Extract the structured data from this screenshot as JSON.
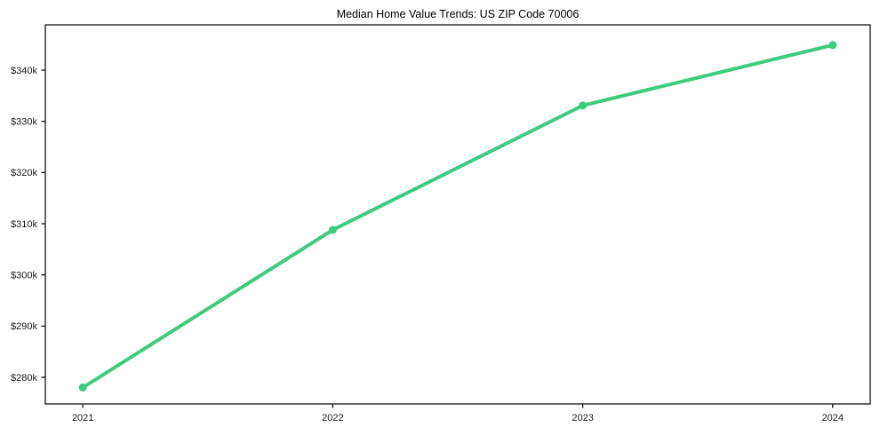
{
  "figure": {
    "title": "Median Home Value Trends: US ZIP Code 70006"
  },
  "chart_data": {
    "type": "line",
    "title": "Median Home Value Trends: US ZIP Code 70006",
    "xlabel": "",
    "ylabel": "",
    "x": [
      2021,
      2022,
      2023,
      2024
    ],
    "values": [
      278000,
      308800,
      333100,
      344900
    ],
    "xtick_labels": [
      "2021",
      "2022",
      "2023",
      "2024"
    ],
    "ytick_values": [
      280000,
      290000,
      300000,
      310000,
      320000,
      330000,
      340000
    ],
    "ytick_labels": [
      "$280k",
      "$290k",
      "$300k",
      "$310k",
      "$320k",
      "$330k",
      "$340k"
    ],
    "xlim": [
      2020.85,
      2024.15
    ],
    "ylim": [
      274800,
      348850
    ],
    "grid": false,
    "legend": false,
    "line_color": "#3dcb7d",
    "marker_color": "#3dcb7d",
    "line_width": 4,
    "marker_radius": 4.5,
    "axis_color": "#000000",
    "tick_label_color": "#1a1a1a",
    "background": "#ffffff"
  }
}
